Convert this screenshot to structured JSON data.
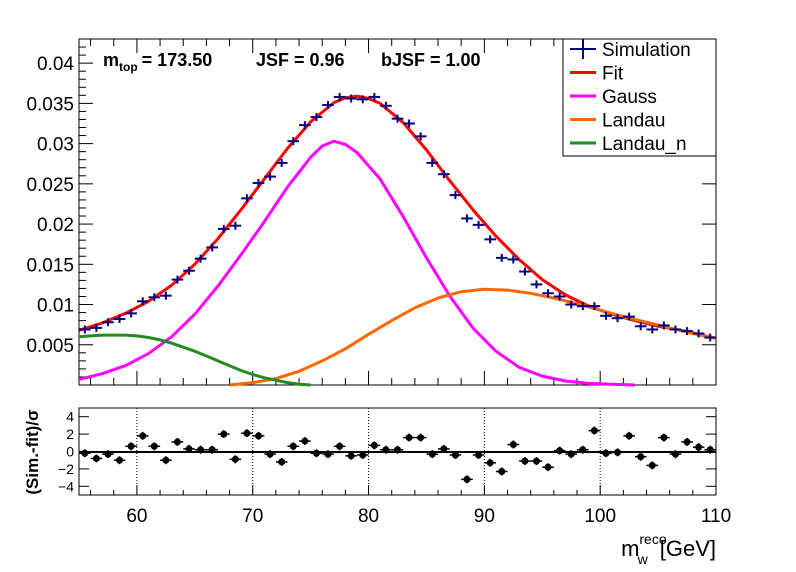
{
  "chart_data": [
    {
      "type": "line",
      "title": "",
      "annotation": {
        "mtop_label": "m",
        "mtop_sub": "top",
        "mtop_value": "= 173.50",
        "jsf": "JSF = 0.96",
        "bjsf": "bJSF = 1.00"
      },
      "xlim": [
        55,
        110
      ],
      "ylim": [
        0,
        0.043
      ],
      "yticks": [
        "0.005",
        "0.01",
        "0.015",
        "0.02",
        "0.025",
        "0.03",
        "0.035",
        "0.04"
      ],
      "ytick_values": [
        0.005,
        0.01,
        0.015,
        0.02,
        0.025,
        0.03,
        0.035,
        0.04
      ],
      "legend": [
        {
          "label": "Simulation",
          "color": "#000080"
        },
        {
          "label": "Fit",
          "color": "#ff0000"
        },
        {
          "label": "Gauss",
          "color": "#ff00ff"
        },
        {
          "label": "Landau",
          "color": "#ff6600"
        },
        {
          "label": "Landau_n",
          "color": "#228b22"
        }
      ],
      "legend_position": "top-right",
      "series": [
        {
          "name": "Simulation",
          "type": "errorbar",
          "color": "#000080",
          "bin_width": 1,
          "x": [
            55.5,
            56.5,
            57.5,
            58.5,
            59.5,
            60.5,
            61.5,
            62.5,
            63.5,
            64.5,
            65.5,
            66.5,
            67.5,
            68.5,
            69.5,
            70.5,
            71.5,
            72.5,
            73.5,
            74.5,
            75.5,
            76.5,
            77.5,
            78.5,
            79.5,
            80.5,
            81.5,
            82.5,
            83.5,
            84.5,
            85.5,
            86.5,
            87.5,
            88.5,
            89.5,
            90.5,
            91.5,
            92.5,
            93.5,
            94.5,
            95.5,
            96.5,
            97.5,
            98.5,
            99.5,
            100.5,
            101.5,
            102.5,
            103.5,
            104.5,
            105.5,
            106.5,
            107.5,
            108.5,
            109.5
          ],
          "y": [
            0.0069,
            0.0071,
            0.0078,
            0.0082,
            0.0089,
            0.0104,
            0.0109,
            0.0111,
            0.0131,
            0.0142,
            0.0157,
            0.0171,
            0.0194,
            0.0198,
            0.0232,
            0.0251,
            0.0259,
            0.0276,
            0.0303,
            0.0323,
            0.0333,
            0.0348,
            0.0358,
            0.0356,
            0.0355,
            0.0358,
            0.0347,
            0.0331,
            0.0325,
            0.0309,
            0.0276,
            0.0262,
            0.0236,
            0.0207,
            0.0199,
            0.0181,
            0.0158,
            0.0156,
            0.0141,
            0.0125,
            0.0114,
            0.011,
            0.01,
            0.0098,
            0.0098,
            0.0086,
            0.0083,
            0.0085,
            0.0073,
            0.0069,
            0.0074,
            0.0069,
            0.0067,
            0.0064,
            0.0059
          ]
        },
        {
          "name": "Fit",
          "color": "#ff0000",
          "x": [
            55,
            57,
            59,
            61,
            63,
            65,
            67,
            69,
            71,
            73,
            75,
            77,
            78,
            79,
            80,
            81,
            83,
            85,
            87,
            89,
            91,
            93,
            95,
            97,
            99,
            101,
            103,
            105,
            107,
            110
          ],
          "y": [
            0.0068,
            0.0077,
            0.0089,
            0.0104,
            0.0124,
            0.015,
            0.0182,
            0.0218,
            0.0256,
            0.0294,
            0.0327,
            0.0351,
            0.0357,
            0.0359,
            0.0356,
            0.035,
            0.0326,
            0.0292,
            0.0254,
            0.0218,
            0.0185,
            0.0156,
            0.0131,
            0.0112,
            0.0098,
            0.0088,
            0.008,
            0.0073,
            0.0068,
            0.0058
          ]
        },
        {
          "name": "Gauss",
          "color": "#ff00ff",
          "x": [
            55,
            57,
            59,
            61,
            63,
            65,
            67,
            69,
            71,
            73,
            75,
            76,
            77,
            78,
            79,
            81,
            83,
            85,
            87,
            89,
            91,
            93,
            95,
            97,
            99,
            101,
            103
          ],
          "y": [
            0.0007,
            0.0014,
            0.0024,
            0.0039,
            0.006,
            0.0088,
            0.0123,
            0.0162,
            0.0203,
            0.0246,
            0.0283,
            0.0297,
            0.0303,
            0.0299,
            0.0289,
            0.0256,
            0.0209,
            0.0158,
            0.0111,
            0.0071,
            0.0042,
            0.0022,
            0.0011,
            0.0005,
            0.0002,
            0.0001,
            0.0
          ]
        },
        {
          "name": "Landau",
          "color": "#ff6600",
          "x": [
            68,
            70,
            72,
            74,
            76,
            78,
            80,
            82,
            84,
            86,
            88,
            90,
            92,
            94,
            96,
            98,
            100,
            102,
            104,
            106,
            108,
            110
          ],
          "y": [
            0.0,
            0.0003,
            0.0008,
            0.0017,
            0.003,
            0.0045,
            0.0063,
            0.008,
            0.0096,
            0.0108,
            0.0116,
            0.0119,
            0.0118,
            0.0114,
            0.0108,
            0.0101,
            0.0093,
            0.0085,
            0.0078,
            0.0071,
            0.0064,
            0.0058
          ]
        },
        {
          "name": "Landau_n",
          "color": "#228b22",
          "x": [
            55,
            56,
            57,
            58,
            59,
            60,
            61,
            62,
            63,
            64,
            65,
            66,
            67,
            68,
            69,
            70,
            71,
            72,
            73,
            74,
            75
          ],
          "y": [
            0.006,
            0.0061,
            0.0062,
            0.0062,
            0.0062,
            0.0061,
            0.0059,
            0.0056,
            0.0052,
            0.0047,
            0.0042,
            0.0036,
            0.003,
            0.0024,
            0.0018,
            0.0013,
            0.0009,
            0.0006,
            0.0003,
            0.0001,
            0.0
          ]
        }
      ]
    },
    {
      "type": "scatter",
      "ylabel": "(Sim.-fit)/σ",
      "xlabel_main": "m",
      "xlabel_sub": "w",
      "xlabel_sup": "reco",
      "xlabel_unit": "[GeV]",
      "xlim": [
        55,
        110
      ],
      "ylim": [
        -5,
        5
      ],
      "xticks": [
        "60",
        "70",
        "80",
        "90",
        "100",
        "110"
      ],
      "xtick_values": [
        60,
        70,
        80,
        90,
        100,
        110
      ],
      "yticks": [
        "4",
        "2",
        "0",
        "−2",
        "−4"
      ],
      "ytick_values": [
        4,
        2,
        0,
        -2,
        -4
      ],
      "grid_x_dotted": [
        60,
        70,
        80,
        90,
        100
      ],
      "series": [
        {
          "name": "",
          "color": "#000000",
          "x": [
            55.5,
            56.5,
            57.5,
            58.5,
            59.5,
            60.5,
            61.5,
            62.5,
            63.5,
            64.5,
            65.5,
            66.5,
            67.5,
            68.5,
            69.5,
            70.5,
            71.5,
            72.5,
            73.5,
            74.5,
            75.5,
            76.5,
            77.5,
            78.5,
            79.5,
            80.5,
            81.5,
            82.5,
            83.5,
            84.5,
            85.5,
            86.5,
            87.5,
            88.5,
            89.5,
            90.5,
            91.5,
            92.5,
            93.5,
            94.5,
            95.5,
            96.5,
            97.5,
            98.5,
            99.5,
            100.5,
            101.5,
            102.5,
            103.5,
            104.5,
            105.5,
            106.5,
            107.5,
            108.5,
            109.5
          ],
          "y": [
            -0.2,
            -0.8,
            -0.3,
            -1.0,
            0.6,
            1.8,
            0.6,
            -1.0,
            1.1,
            0.3,
            0.2,
            0.2,
            2.0,
            -0.9,
            2.1,
            1.8,
            -0.3,
            -1.2,
            0.6,
            1.2,
            -0.2,
            -0.3,
            0.6,
            -0.5,
            -0.4,
            0.7,
            0.2,
            0.2,
            1.6,
            1.6,
            -0.3,
            0.3,
            -0.4,
            -3.2,
            -0.4,
            -1.3,
            -2.3,
            0.8,
            -1.1,
            -1.1,
            -1.8,
            0.1,
            -0.3,
            0.2,
            2.4,
            -0.2,
            -0.1,
            1.8,
            -0.6,
            -1.6,
            1.6,
            -0.3,
            1.1,
            0.5,
            0.2
          ]
        }
      ]
    }
  ]
}
